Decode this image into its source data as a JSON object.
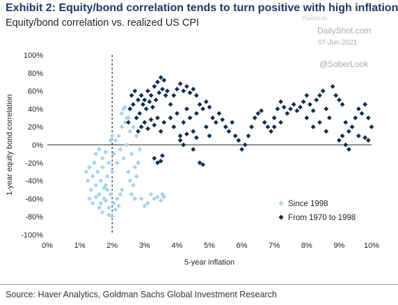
{
  "title": "Exhibit 2: Equity/bond correlation tends to turn positive with high inflation",
  "subtitle": "Equity/bond correlation vs. realized US CPI",
  "watermark": {
    "posted": "Posted on",
    "site": "DailyShot.com",
    "date": "07-Jun-2021",
    "handle": "@SoberLook"
  },
  "source": "Source: Haver Analytics, Goldman Sachs Global Investment Research",
  "colors": {
    "since1998": "#a9d2ef",
    "from1970": "#0d2c52",
    "axis": "#222222",
    "reference_line": "#222222"
  },
  "chart_data": {
    "type": "scatter",
    "xlabel": "5-year inflation",
    "ylabel": "1-year equity bond correlation",
    "xlim": [
      0,
      10
    ],
    "ylim": [
      -100,
      100
    ],
    "x_ticks": [
      "0%",
      "1%",
      "2%",
      "3%",
      "4%",
      "5%",
      "6%",
      "7%",
      "8%",
      "9%",
      "10%"
    ],
    "y_ticks": [
      "100%",
      "80%",
      "60%",
      "40%",
      "20%",
      "0%",
      "-20%",
      "-40%",
      "-60%",
      "-80%",
      "-100%"
    ],
    "reference_line_x": 2,
    "legend_position": "bottom-right",
    "marker": "diamond",
    "series": [
      {
        "name": "Since 1998",
        "points": [
          [
            1.2,
            -30
          ],
          [
            1.25,
            -40
          ],
          [
            1.3,
            -25
          ],
          [
            1.35,
            -50
          ],
          [
            1.4,
            -35
          ],
          [
            1.45,
            -20
          ],
          [
            1.5,
            -45
          ],
          [
            1.55,
            -30
          ],
          [
            1.6,
            -55
          ],
          [
            1.65,
            -40
          ],
          [
            1.7,
            -25
          ],
          [
            1.75,
            -60
          ],
          [
            1.8,
            -45
          ],
          [
            1.85,
            -35
          ],
          [
            1.9,
            -70
          ],
          [
            1.95,
            -55
          ],
          [
            1.3,
            -60
          ],
          [
            1.4,
            -65
          ],
          [
            1.5,
            -58
          ],
          [
            1.6,
            -70
          ],
          [
            1.7,
            -75
          ],
          [
            1.8,
            -62
          ],
          [
            1.9,
            -78
          ],
          [
            2.0,
            -80
          ],
          [
            2.05,
            -65
          ],
          [
            2.1,
            -72
          ],
          [
            2.15,
            -60
          ],
          [
            2.2,
            -68
          ],
          [
            2.25,
            -55
          ],
          [
            2.3,
            -50
          ],
          [
            2.0,
            -30
          ],
          [
            2.05,
            -10
          ],
          [
            2.1,
            5
          ],
          [
            2.15,
            -20
          ],
          [
            2.2,
            10
          ],
          [
            2.25,
            -5
          ],
          [
            2.3,
            20
          ],
          [
            2.35,
            -15
          ],
          [
            2.4,
            25
          ],
          [
            2.45,
            0
          ],
          [
            2.5,
            30
          ],
          [
            2.55,
            15
          ],
          [
            2.6,
            -10
          ],
          [
            2.65,
            20
          ],
          [
            2.7,
            -25
          ],
          [
            2.75,
            10
          ],
          [
            2.3,
            35
          ],
          [
            2.35,
            40
          ],
          [
            2.4,
            42
          ],
          [
            2.45,
            30
          ],
          [
            2.5,
            -30
          ],
          [
            2.55,
            -40
          ],
          [
            2.6,
            -55
          ],
          [
            2.65,
            -45
          ],
          [
            2.7,
            -60
          ],
          [
            2.75,
            -35
          ],
          [
            2.8,
            -20
          ],
          [
            2.85,
            -5
          ],
          [
            2.9,
            -60
          ],
          [
            3.0,
            -68
          ],
          [
            3.1,
            -65
          ],
          [
            3.2,
            -55
          ],
          [
            3.3,
            -60
          ],
          [
            3.4,
            -58
          ],
          [
            3.5,
            -62
          ],
          [
            3.55,
            -55
          ],
          [
            3.6,
            -58
          ],
          [
            1.5,
            -10
          ],
          [
            1.6,
            -5
          ],
          [
            1.7,
            -15
          ],
          [
            1.8,
            -8
          ],
          [
            1.9,
            -20
          ],
          [
            1.95,
            5
          ],
          [
            2.0,
            10
          ],
          [
            1.85,
            -50
          ],
          [
            1.75,
            -48
          ],
          [
            1.65,
            -65
          ]
        ]
      },
      {
        "name": "From 1970 to 1998",
        "points": [
          [
            2.5,
            25
          ],
          [
            2.55,
            40
          ],
          [
            2.6,
            55
          ],
          [
            2.65,
            45
          ],
          [
            2.7,
            60
          ],
          [
            2.75,
            30
          ],
          [
            2.8,
            50
          ],
          [
            2.85,
            35
          ],
          [
            2.9,
            55
          ],
          [
            2.95,
            45
          ],
          [
            3.0,
            50
          ],
          [
            3.05,
            40
          ],
          [
            3.1,
            60
          ],
          [
            3.15,
            48
          ],
          [
            3.2,
            55
          ],
          [
            3.25,
            42
          ],
          [
            3.3,
            65
          ],
          [
            3.35,
            50
          ],
          [
            3.4,
            70
          ],
          [
            3.45,
            58
          ],
          [
            3.5,
            75
          ],
          [
            3.55,
            62
          ],
          [
            3.6,
            72
          ],
          [
            3.65,
            55
          ],
          [
            3.7,
            60
          ],
          [
            2.8,
            15
          ],
          [
            2.9,
            20
          ],
          [
            3.0,
            25
          ],
          [
            3.1,
            18
          ],
          [
            3.2,
            28
          ],
          [
            3.3,
            22
          ],
          [
            3.4,
            30
          ],
          [
            3.5,
            15
          ],
          [
            3.6,
            25
          ],
          [
            3.3,
            -15
          ],
          [
            3.4,
            -20
          ],
          [
            3.5,
            -18
          ],
          [
            3.55,
            -12
          ],
          [
            3.8,
            45
          ],
          [
            3.9,
            55
          ],
          [
            4.0,
            62
          ],
          [
            4.1,
            68
          ],
          [
            4.2,
            60
          ],
          [
            4.3,
            65
          ],
          [
            4.4,
            58
          ],
          [
            4.5,
            62
          ],
          [
            4.6,
            55
          ],
          [
            3.8,
            30
          ],
          [
            3.9,
            20
          ],
          [
            4.0,
            35
          ],
          [
            4.1,
            10
          ],
          [
            4.2,
            25
          ],
          [
            4.3,
            40
          ],
          [
            4.4,
            30
          ],
          [
            4.5,
            15
          ],
          [
            4.6,
            35
          ],
          [
            4.7,
            45
          ],
          [
            4.8,
            40
          ],
          [
            4.9,
            48
          ],
          [
            5.0,
            42
          ],
          [
            4.1,
            5
          ],
          [
            4.2,
            0
          ],
          [
            4.3,
            12
          ],
          [
            4.5,
            -5
          ],
          [
            4.6,
            8
          ],
          [
            4.7,
            -20
          ],
          [
            4.8,
            -22
          ],
          [
            4.9,
            20
          ],
          [
            5.0,
            10
          ],
          [
            5.1,
            30
          ],
          [
            5.2,
            25
          ],
          [
            5.3,
            35
          ],
          [
            5.4,
            28
          ],
          [
            5.5,
            20
          ],
          [
            5.6,
            15
          ],
          [
            5.7,
            25
          ],
          [
            5.8,
            10
          ],
          [
            5.9,
            5
          ],
          [
            6.0,
            -5
          ],
          [
            6.1,
            0
          ],
          [
            6.2,
            10
          ],
          [
            6.3,
            20
          ],
          [
            6.4,
            30
          ],
          [
            6.5,
            35
          ],
          [
            6.6,
            38
          ],
          [
            6.7,
            25
          ],
          [
            6.8,
            20
          ],
          [
            6.9,
            15
          ],
          [
            7.0,
            30
          ],
          [
            7.1,
            40
          ],
          [
            7.2,
            48
          ],
          [
            7.3,
            42
          ],
          [
            7.0,
            20
          ],
          [
            7.2,
            25
          ],
          [
            7.4,
            35
          ],
          [
            7.5,
            40
          ],
          [
            7.6,
            45
          ],
          [
            7.7,
            38
          ],
          [
            7.8,
            42
          ],
          [
            7.9,
            48
          ],
          [
            8.0,
            55
          ],
          [
            8.1,
            45
          ],
          [
            8.2,
            38
          ],
          [
            8.3,
            50
          ],
          [
            8.4,
            55
          ],
          [
            8.5,
            60
          ],
          [
            8.6,
            40
          ],
          [
            8.7,
            30
          ],
          [
            8.8,
            65
          ],
          [
            8.9,
            55
          ],
          [
            9.0,
            50
          ],
          [
            9.1,
            45
          ],
          [
            9.2,
            25
          ],
          [
            9.3,
            15
          ],
          [
            9.4,
            20
          ],
          [
            9.5,
            30
          ],
          [
            9.6,
            40
          ],
          [
            9.7,
            35
          ],
          [
            9.8,
            45
          ],
          [
            9.9,
            30
          ],
          [
            10.0,
            20
          ],
          [
            9.0,
            5
          ],
          [
            9.1,
            10
          ],
          [
            9.2,
            0
          ],
          [
            9.3,
            -5
          ],
          [
            9.6,
            10
          ],
          [
            9.8,
            8
          ],
          [
            9.9,
            5
          ],
          [
            8.2,
            20
          ],
          [
            8.4,
            25
          ],
          [
            8.6,
            15
          ],
          [
            8.0,
            30
          ]
        ]
      }
    ]
  }
}
